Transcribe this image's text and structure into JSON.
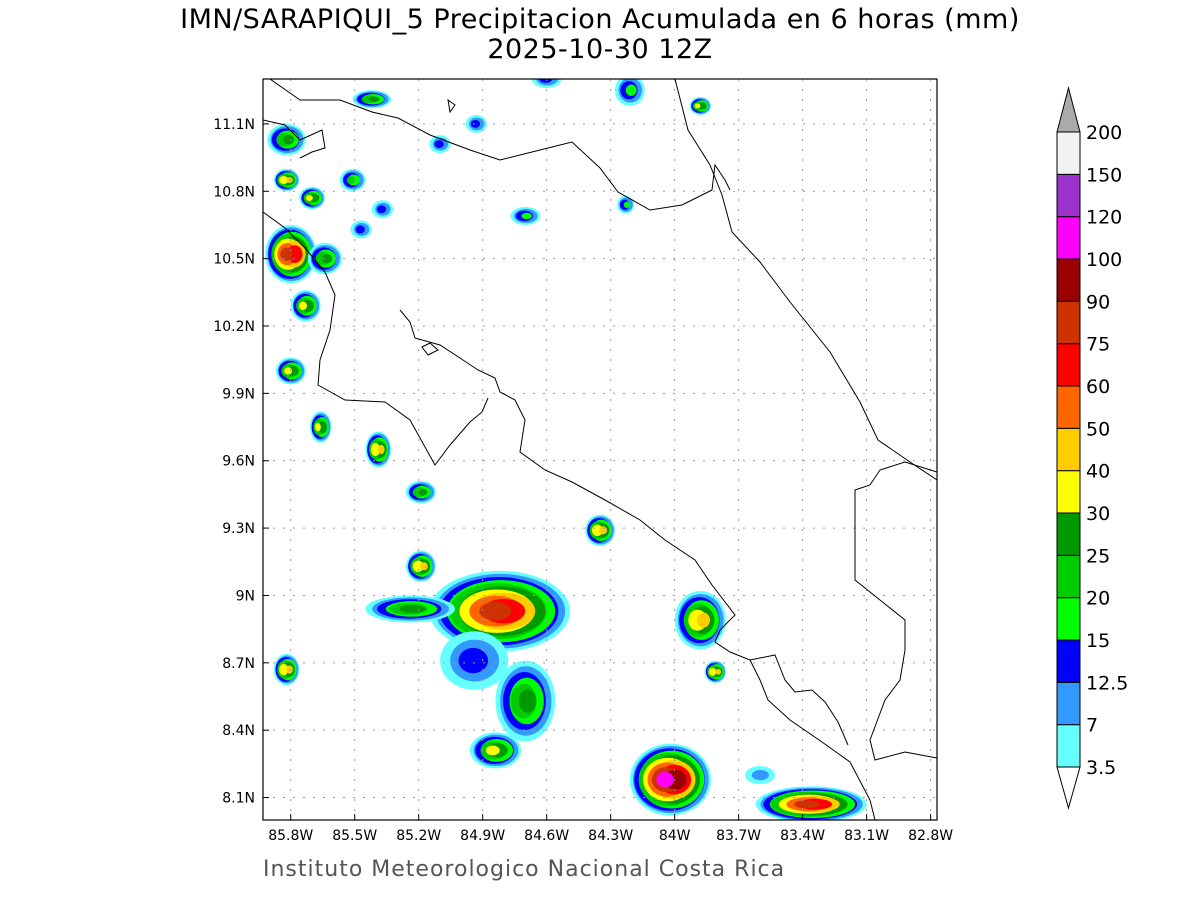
{
  "title": "IMN/SARAPIQUI_5 Precipitacion Acumulada en 6 horas (mm)",
  "subtitle": "2025-10-30 12Z",
  "footer": "Instituto Meteorologico Nacional Costa Rica",
  "chart_data": {
    "type": "heatmap",
    "units": "mm",
    "lon_range": [
      -85.93,
      -82.77
    ],
    "lat_range": [
      8.0,
      11.3
    ],
    "grid": true,
    "x_ticks": [
      "85.8W",
      "85.5W",
      "85.2W",
      "84.9W",
      "84.6W",
      "84.3W",
      "84W",
      "83.7W",
      "83.4W",
      "83.1W",
      "82.8W"
    ],
    "x_tick_values": [
      -85.8,
      -85.5,
      -85.2,
      -84.9,
      -84.6,
      -84.3,
      -84.0,
      -83.7,
      -83.4,
      -83.1,
      -82.8
    ],
    "y_ticks": [
      "11.1N",
      "10.8N",
      "10.5N",
      "10.2N",
      "9.9N",
      "9.6N",
      "9.3N",
      "9N",
      "8.7N",
      "8.4N",
      "8.1N"
    ],
    "y_tick_values": [
      11.1,
      10.8,
      10.5,
      10.2,
      9.9,
      9.6,
      9.3,
      9.0,
      8.7,
      8.4,
      8.1
    ],
    "colorbar": {
      "labels": [
        "3.5",
        "7",
        "12.5",
        "15",
        "20",
        "25",
        "30",
        "40",
        "50",
        "60",
        "75",
        "90",
        "100",
        "120",
        "150",
        "200"
      ],
      "colors": [
        "#66ffff",
        "#3399ff",
        "#0000ff",
        "#00ff00",
        "#00cc00",
        "#009900",
        "#ffff00",
        "#ffcc00",
        "#ff6600",
        "#ff0000",
        "#cc3300",
        "#990000",
        "#ff00ff",
        "#9933cc",
        "#f2f2f2"
      ],
      "over_color": "#aaaaaa",
      "under_color": "#ffffff"
    },
    "cells": [
      {
        "lon": -85.82,
        "lat": 11.03,
        "rlon": 0.09,
        "rlat": 0.07,
        "peak": 25
      },
      {
        "lon": -85.8,
        "lat": 10.52,
        "rlon": 0.12,
        "rlat": 0.13,
        "peak": 75
      },
      {
        "lon": -85.64,
        "lat": 10.5,
        "rlon": 0.08,
        "rlat": 0.07,
        "peak": 25
      },
      {
        "lon": -85.73,
        "lat": 10.29,
        "rlon": 0.07,
        "rlat": 0.07,
        "peak": 30
      },
      {
        "lon": -85.8,
        "lat": 10.0,
        "rlon": 0.07,
        "rlat": 0.06,
        "peak": 30
      },
      {
        "lon": -85.66,
        "lat": 9.75,
        "rlon": 0.05,
        "rlat": 0.07,
        "peak": 30
      },
      {
        "lon": -85.39,
        "lat": 9.65,
        "rlon": 0.06,
        "rlat": 0.08,
        "peak": 40
      },
      {
        "lon": -85.19,
        "lat": 9.46,
        "rlon": 0.07,
        "rlat": 0.05,
        "peak": 25
      },
      {
        "lon": -85.82,
        "lat": 10.85,
        "rlon": 0.06,
        "rlat": 0.05,
        "peak": 40
      },
      {
        "lon": -85.7,
        "lat": 10.77,
        "rlon": 0.06,
        "rlat": 0.05,
        "peak": 30
      },
      {
        "lon": -85.51,
        "lat": 10.85,
        "rlon": 0.06,
        "rlat": 0.05,
        "peak": 20
      },
      {
        "lon": -85.42,
        "lat": 11.21,
        "rlon": 0.09,
        "rlat": 0.04,
        "peak": 25
      },
      {
        "lon": -84.82,
        "lat": 8.93,
        "rlon": 0.33,
        "rlat": 0.18,
        "peak": 75
      },
      {
        "lon": -85.24,
        "lat": 8.94,
        "rlon": 0.21,
        "rlat": 0.06,
        "peak": 25
      },
      {
        "lon": -84.94,
        "lat": 8.71,
        "rlon": 0.16,
        "rlat": 0.13,
        "peak": 12.5
      },
      {
        "lon": -84.7,
        "lat": 8.53,
        "rlon": 0.14,
        "rlat": 0.18,
        "peak": 25
      },
      {
        "lon": -84.84,
        "lat": 8.31,
        "rlon": 0.12,
        "rlat": 0.08,
        "peak": 30
      },
      {
        "lon": -85.82,
        "lat": 8.67,
        "rlon": 0.06,
        "rlat": 0.07,
        "peak": 40
      },
      {
        "lon": -84.35,
        "lat": 9.29,
        "rlon": 0.07,
        "rlat": 0.07,
        "peak": 40
      },
      {
        "lon": -83.88,
        "lat": 8.89,
        "rlon": 0.12,
        "rlat": 0.13,
        "peak": 40
      },
      {
        "lon": -83.81,
        "lat": 8.66,
        "rlon": 0.05,
        "rlat": 0.05,
        "peak": 40
      },
      {
        "lon": -84.02,
        "lat": 8.18,
        "rlon": 0.19,
        "rlat": 0.16,
        "peak": 100
      },
      {
        "lon": -83.36,
        "lat": 8.07,
        "rlon": 0.26,
        "rlat": 0.08,
        "peak": 75
      },
      {
        "lon": -83.6,
        "lat": 8.2,
        "rlon": 0.07,
        "rlat": 0.04,
        "peak": 7
      },
      {
        "lon": -84.7,
        "lat": 10.69,
        "rlon": 0.07,
        "rlat": 0.04,
        "peak": 15
      },
      {
        "lon": -84.23,
        "lat": 10.74,
        "rlon": 0.04,
        "rlat": 0.04,
        "peak": 15
      },
      {
        "lon": -83.88,
        "lat": 11.18,
        "rlon": 0.05,
        "rlat": 0.04,
        "peak": 30
      },
      {
        "lon": -84.21,
        "lat": 11.25,
        "rlon": 0.07,
        "rlat": 0.07,
        "peak": 15
      },
      {
        "lon": -85.19,
        "lat": 9.13,
        "rlon": 0.07,
        "rlat": 0.07,
        "peak": 40
      },
      {
        "lon": -85.1,
        "lat": 11.01,
        "rlon": 0.05,
        "rlat": 0.04,
        "peak": 12.5
      },
      {
        "lon": -84.93,
        "lat": 11.1,
        "rlon": 0.05,
        "rlat": 0.04,
        "peak": 12.5
      },
      {
        "lon": -85.37,
        "lat": 10.72,
        "rlon": 0.05,
        "rlat": 0.04,
        "peak": 12.5
      },
      {
        "lon": -85.47,
        "lat": 10.63,
        "rlon": 0.05,
        "rlat": 0.04,
        "peak": 12.5
      },
      {
        "lon": -84.6,
        "lat": 11.3,
        "rlon": 0.07,
        "rlat": 0.04,
        "peak": 12.5
      }
    ]
  }
}
